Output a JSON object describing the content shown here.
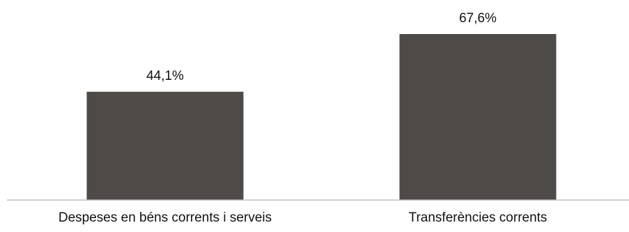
{
  "chart_data": {
    "type": "bar",
    "categories": [
      "Despeses en béns corrents i serveis",
      "Transferències corrents"
    ],
    "values": [
      44.1,
      67.6
    ],
    "data_labels": [
      "44,1%",
      "67,6%"
    ],
    "title": "",
    "xlabel": "",
    "ylabel": "",
    "ylim": [
      0,
      80
    ],
    "grid": false,
    "legend": "none",
    "colors": {
      "bar": "#4e4a48",
      "axis": "#bfbfbf",
      "text": "#111111"
    }
  }
}
